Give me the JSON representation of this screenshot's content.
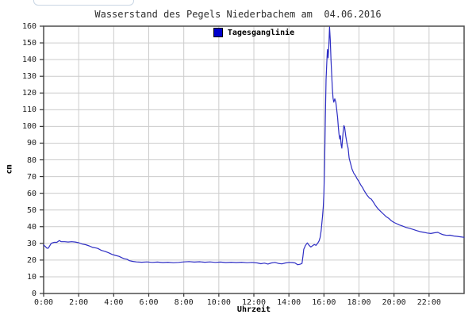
{
  "title": "Wasserstand des Pegels Niederbachem am  04.06.2016",
  "legend": {
    "label": "Tagesganglinie",
    "marker_color": "#0000cc"
  },
  "axes": {
    "y_title": "cm",
    "x_title": "Uhrzeit"
  },
  "colors": {
    "line": "#2e2ec4",
    "grid": "#cccccc",
    "frame": "#4d4d4d",
    "tick": "#333333",
    "text": "#1c1c1c",
    "background": "#ffffff"
  },
  "chart_data": {
    "type": "line",
    "title": "Wasserstand des Pegels Niederbachem am  04.06.2016",
    "xlabel": "Uhrzeit",
    "ylabel": "cm",
    "xlim": [
      0,
      24
    ],
    "ylim": [
      0,
      160
    ],
    "grid": true,
    "legend_position": "top-center",
    "xticks": {
      "values": [
        0,
        2,
        4,
        6,
        8,
        10,
        12,
        14,
        16,
        18,
        20,
        22
      ],
      "labels": [
        "0:00",
        "2:00",
        "4:00",
        "6:00",
        "8:00",
        "10:00",
        "12:00",
        "14:00",
        "16:00",
        "18:00",
        "20:00",
        "22:00"
      ]
    },
    "yticks": {
      "values": [
        0,
        10,
        20,
        30,
        40,
        50,
        60,
        70,
        80,
        90,
        100,
        110,
        120,
        130,
        140,
        150,
        160
      ],
      "labels": [
        "0",
        "10",
        "20",
        "30",
        "40",
        "50",
        "60",
        "70",
        "80",
        "90",
        "100",
        "110",
        "120",
        "130",
        "140",
        "150",
        "160"
      ]
    },
    "series": [
      {
        "name": "Tagesganglinie",
        "color": "#2e2ec4",
        "points": [
          [
            0.0,
            29.0
          ],
          [
            0.08,
            28.3
          ],
          [
            0.17,
            27.2
          ],
          [
            0.25,
            27.0
          ],
          [
            0.33,
            28.2
          ],
          [
            0.42,
            29.8
          ],
          [
            0.5,
            30.3
          ],
          [
            0.6,
            30.6
          ],
          [
            0.75,
            30.6
          ],
          [
            0.9,
            31.7
          ],
          [
            1.0,
            31.0
          ],
          [
            1.2,
            31.0
          ],
          [
            1.4,
            30.8
          ],
          [
            1.6,
            31.0
          ],
          [
            1.8,
            30.8
          ],
          [
            2.0,
            30.4
          ],
          [
            2.2,
            29.6
          ],
          [
            2.4,
            29.2
          ],
          [
            2.6,
            28.5
          ],
          [
            2.8,
            27.6
          ],
          [
            3.0,
            27.2
          ],
          [
            3.1,
            26.9
          ],
          [
            3.3,
            25.8
          ],
          [
            3.5,
            25.2
          ],
          [
            3.7,
            24.4
          ],
          [
            3.9,
            23.4
          ],
          [
            4.1,
            22.8
          ],
          [
            4.3,
            22.2
          ],
          [
            4.5,
            21.2
          ],
          [
            4.6,
            20.8
          ],
          [
            4.75,
            20.5
          ],
          [
            4.9,
            19.6
          ],
          [
            5.1,
            19.2
          ],
          [
            5.3,
            18.9
          ],
          [
            5.6,
            18.7
          ],
          [
            5.9,
            18.9
          ],
          [
            6.2,
            18.6
          ],
          [
            6.5,
            18.8
          ],
          [
            6.8,
            18.5
          ],
          [
            7.1,
            18.7
          ],
          [
            7.4,
            18.4
          ],
          [
            7.7,
            18.6
          ],
          [
            8.0,
            18.9
          ],
          [
            8.3,
            19.1
          ],
          [
            8.6,
            18.8
          ],
          [
            8.9,
            19.0
          ],
          [
            9.2,
            18.7
          ],
          [
            9.5,
            18.9
          ],
          [
            9.8,
            18.6
          ],
          [
            10.1,
            18.8
          ],
          [
            10.4,
            18.5
          ],
          [
            10.7,
            18.7
          ],
          [
            11.0,
            18.5
          ],
          [
            11.3,
            18.7
          ],
          [
            11.6,
            18.4
          ],
          [
            11.9,
            18.6
          ],
          [
            12.2,
            18.3
          ],
          [
            12.4,
            17.8
          ],
          [
            12.6,
            18.2
          ],
          [
            12.8,
            17.6
          ],
          [
            13.0,
            18.3
          ],
          [
            13.2,
            18.6
          ],
          [
            13.4,
            18.0
          ],
          [
            13.6,
            17.7
          ],
          [
            13.8,
            18.3
          ],
          [
            14.0,
            18.6
          ],
          [
            14.2,
            18.5
          ],
          [
            14.35,
            18.3
          ],
          [
            14.5,
            17.2
          ],
          [
            14.65,
            17.5
          ],
          [
            14.75,
            18.0
          ],
          [
            14.8,
            22.0
          ],
          [
            14.85,
            26.5
          ],
          [
            14.95,
            28.8
          ],
          [
            15.05,
            30.3
          ],
          [
            15.15,
            28.8
          ],
          [
            15.25,
            27.8
          ],
          [
            15.35,
            28.6
          ],
          [
            15.45,
            29.3
          ],
          [
            15.55,
            28.8
          ],
          [
            15.65,
            30.2
          ],
          [
            15.72,
            31.5
          ],
          [
            15.78,
            33.5
          ],
          [
            15.84,
            37.5
          ],
          [
            15.88,
            42.0
          ],
          [
            15.92,
            46.5
          ],
          [
            15.96,
            52.0
          ],
          [
            16.0,
            60.0
          ],
          [
            16.04,
            78.0
          ],
          [
            16.08,
            105.0
          ],
          [
            16.12,
            128.0
          ],
          [
            16.16,
            138.0
          ],
          [
            16.2,
            146.0
          ],
          [
            16.24,
            141.0
          ],
          [
            16.28,
            148.0
          ],
          [
            16.32,
            159.5
          ],
          [
            16.36,
            152.0
          ],
          [
            16.4,
            140.0
          ],
          [
            16.44,
            131.0
          ],
          [
            16.48,
            123.0
          ],
          [
            16.52,
            117.0
          ],
          [
            16.56,
            114.5
          ],
          [
            16.62,
            116.5
          ],
          [
            16.68,
            114.5
          ],
          [
            16.72,
            111.0
          ],
          [
            16.78,
            105.0
          ],
          [
            16.82,
            100.0
          ],
          [
            16.86,
            95.5
          ],
          [
            16.9,
            92.5
          ],
          [
            16.94,
            94.5
          ],
          [
            16.98,
            89.0
          ],
          [
            17.02,
            87.0
          ],
          [
            17.06,
            92.0
          ],
          [
            17.1,
            97.0
          ],
          [
            17.14,
            100.5
          ],
          [
            17.18,
            99.5
          ],
          [
            17.25,
            94.0
          ],
          [
            17.32,
            89.5
          ],
          [
            17.38,
            87.0
          ],
          [
            17.44,
            81.0
          ],
          [
            17.5,
            78.5
          ],
          [
            17.6,
            74.5
          ],
          [
            17.7,
            72.0
          ],
          [
            17.8,
            70.5
          ],
          [
            17.9,
            68.5
          ],
          [
            18.0,
            67.0
          ],
          [
            18.1,
            65.0
          ],
          [
            18.2,
            63.5
          ],
          [
            18.3,
            61.5
          ],
          [
            18.45,
            59.0
          ],
          [
            18.6,
            57.0
          ],
          [
            18.7,
            56.5
          ],
          [
            18.8,
            55.0
          ],
          [
            18.95,
            52.5
          ],
          [
            19.1,
            50.5
          ],
          [
            19.25,
            49.0
          ],
          [
            19.4,
            47.5
          ],
          [
            19.55,
            46.0
          ],
          [
            19.7,
            45.0
          ],
          [
            19.85,
            43.5
          ],
          [
            20.0,
            42.5
          ],
          [
            20.15,
            41.8
          ],
          [
            20.3,
            41.0
          ],
          [
            20.5,
            40.3
          ],
          [
            20.7,
            39.5
          ],
          [
            20.9,
            39.0
          ],
          [
            21.1,
            38.3
          ],
          [
            21.3,
            37.6
          ],
          [
            21.5,
            37.0
          ],
          [
            21.7,
            36.6
          ],
          [
            21.9,
            36.2
          ],
          [
            22.1,
            35.9
          ],
          [
            22.3,
            36.3
          ],
          [
            22.5,
            36.6
          ],
          [
            22.65,
            35.8
          ],
          [
            22.8,
            35.2
          ],
          [
            23.0,
            34.8
          ],
          [
            23.2,
            34.9
          ],
          [
            23.4,
            34.4
          ],
          [
            23.6,
            34.2
          ],
          [
            23.8,
            33.9
          ],
          [
            24.0,
            33.6
          ]
        ]
      }
    ]
  }
}
